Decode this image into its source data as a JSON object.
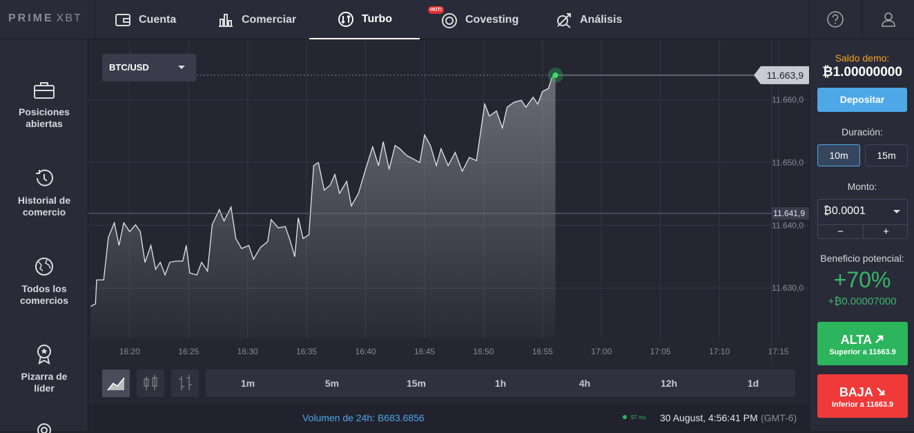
{
  "header": {
    "logo": "PRIME",
    "logo_suffix": "XBT",
    "nav": [
      {
        "label": "Cuenta"
      },
      {
        "label": "Comerciar"
      },
      {
        "label": "Turbo"
      },
      {
        "label": "Covesting",
        "badge": "HOT!"
      },
      {
        "label": "Análisis"
      }
    ]
  },
  "sidebar": {
    "items": [
      "Posiciones abiertas",
      "Historial de comercio",
      "Todos los comercios",
      "Pizarra de líder"
    ]
  },
  "chart_data": {
    "type": "line",
    "pair": "BTC/USD",
    "x": [
      976.7,
      977.1,
      977.2,
      977.8,
      978.2,
      978.7,
      979.1,
      979.5,
      980.0,
      980.5,
      980.9,
      981.3,
      981.8,
      982.2,
      982.6,
      983.0,
      983.4,
      983.9,
      984.5,
      984.8,
      985.1,
      985.7,
      986.1,
      986.6,
      987.0,
      987.6,
      988.0,
      988.6,
      989.0,
      989.5,
      990.1,
      990.5,
      991.1,
      991.7,
      992.0,
      992.6,
      993.2,
      993.6,
      994.0,
      994.3,
      994.7,
      995.2,
      995.6,
      996.0,
      996.5,
      997.0,
      997.4,
      997.8,
      998.4,
      998.8,
      999.4,
      1000.0,
      1000.6,
      1001.1,
      1001.5,
      1002.0,
      1002.5,
      1002.9,
      1003.5,
      1004.1,
      1004.6,
      1005.0,
      1005.5,
      1006.0,
      1006.4,
      1007.0,
      1007.6,
      1008.2,
      1008.8,
      1009.4,
      1010.1,
      1010.5,
      1011.1,
      1011.6,
      1012.0,
      1012.6,
      1013.2,
      1013.6,
      1014.2,
      1014.6,
      1015.0,
      1015.5,
      1015.8,
      1016.1
    ],
    "series": [
      {
        "color": "#e6e6ee",
        "values": [
          11627.1,
          11627.5,
          11631.3,
          11631.3,
          11638.1,
          11640.4,
          11636.8,
          11640.4,
          11639.0,
          11640.1,
          11639.0,
          11634.1,
          11636.8,
          11633.0,
          11634.1,
          11632.1,
          11634.1,
          11634.3,
          11634.3,
          11636.8,
          11632.4,
          11632.1,
          11634.1,
          11632.7,
          11640.1,
          11642.5,
          11640.7,
          11642.9,
          11637.9,
          11636.3,
          11636.8,
          11634.6,
          11636.5,
          11637.4,
          11640.9,
          11639.6,
          11639.8,
          11637.6,
          11635.0,
          11641.2,
          11637.9,
          11638.5,
          11649.5,
          11650.0,
          11645.6,
          11646.4,
          11648.1,
          11645.1,
          11647.0,
          11643.1,
          11645.1,
          11648.9,
          11652.5,
          11649.5,
          11653.3,
          11648.9,
          11652.7,
          11652.2,
          11651.1,
          11650.5,
          11650.0,
          11654.4,
          11652.7,
          11649.5,
          11652.2,
          11649.5,
          11651.6,
          11648.6,
          11650.8,
          11650.3,
          11659.3,
          11657.4,
          11658.2,
          11655.5,
          11658.8,
          11659.6,
          11659.9,
          11658.8,
          11660.4,
          11659.3,
          11661.3,
          11661.8,
          11663.5,
          11663.9
        ]
      }
    ],
    "xlim": [
      976.5,
      1037.6
    ],
    "ylim": [
      11622.0,
      11669.6
    ],
    "xticks": [
      {
        "value": 980,
        "label": "16:20"
      },
      {
        "value": 985,
        "label": "16:25"
      },
      {
        "value": 990,
        "label": "16:30"
      },
      {
        "value": 995,
        "label": "16:35"
      },
      {
        "value": 1000,
        "label": "16:40"
      },
      {
        "value": 1005,
        "label": "16:45"
      },
      {
        "value": 1010,
        "label": "16:50"
      },
      {
        "value": 1015,
        "label": "16:55"
      },
      {
        "value": 1020,
        "label": "17:00"
      },
      {
        "value": 1025,
        "label": "17:05"
      },
      {
        "value": 1030,
        "label": "17:10"
      },
      {
        "value": 1035,
        "label": "17:15"
      }
    ],
    "yticks": [
      {
        "value": 11630,
        "label": "11.630,0"
      },
      {
        "value": 11640,
        "label": "11.640,0"
      },
      {
        "value": 11650,
        "label": "11.650,0"
      },
      {
        "value": 11660,
        "label": "11.660,0"
      }
    ],
    "grid": true,
    "current_price": {
      "value": 11663.9,
      "label": "11.663,9"
    },
    "reference_line": {
      "value": 11641.9,
      "label": "11.641,9"
    }
  },
  "toolbar": {
    "timeframes": [
      "1m",
      "5m",
      "15m",
      "1h",
      "4h",
      "12h",
      "1d"
    ]
  },
  "trade_panel": {
    "balance_label": "Saldo demo:",
    "balance": "₿1.00000000",
    "deposit": "Depositar",
    "duration_label": "Duración:",
    "durations": [
      "10m",
      "15m"
    ],
    "amount_label": "Monto:",
    "amount": "₿0.0001",
    "minus": "−",
    "plus": "+",
    "profit_label": "Beneficio potencial:",
    "profit_percent": "+70%",
    "profit_amount": "+₿0.00007000",
    "up": {
      "label": "ALTA",
      "sub": "Superior a 11663.9"
    },
    "down": {
      "label": "BAJA",
      "sub": "Inferior a 11663.9"
    }
  },
  "footer": {
    "volume": "Volumen de 24h: B683.6856",
    "latency": "97 ms",
    "datetime": "30 August, 4:56:41 PM",
    "timezone": "(GMT-6)"
  }
}
